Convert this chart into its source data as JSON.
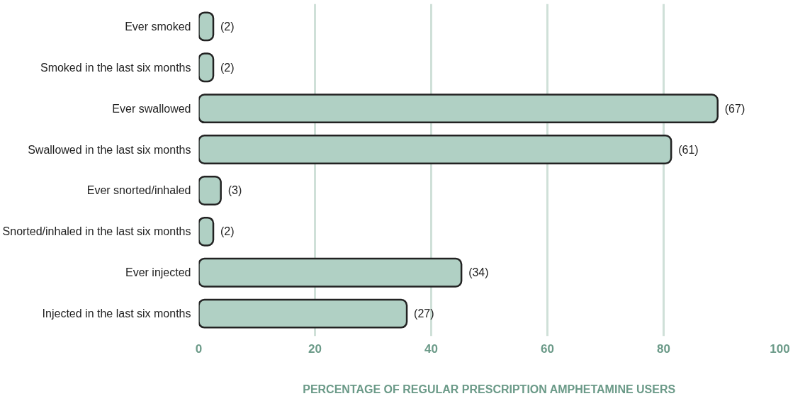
{
  "chart_data": {
    "type": "bar",
    "orientation": "horizontal",
    "xlabel": "PERCENTAGE OF REGULAR PRESCRIPTION AMPHETAMINE USERS",
    "categories": [
      "Ever smoked",
      "Smoked in the last six months",
      "Ever swallowed",
      "Swallowed in the last six months",
      "Ever snorted/inhaled",
      "Snorted/inhaled in the last six months",
      "Ever injected",
      "Injected in the last six months"
    ],
    "values": [
      2.5,
      2.5,
      89.3,
      81.3,
      3.8,
      2.5,
      45.2,
      35.8
    ],
    "annotations": [
      {
        "text": "(2)",
        "x": 2.5,
        "y": "Ever smoked"
      },
      {
        "text": "(2)",
        "x": 2.5,
        "y": "Smoked in the last six months"
      },
      {
        "text": "(67)",
        "x": 89.3,
        "y": "Ever swallowed"
      },
      {
        "text": "(61)",
        "x": 81.3,
        "y": "Swallowed in the last six months"
      },
      {
        "text": "(3)",
        "x": 3.8,
        "y": "Ever snorted/inhaled"
      },
      {
        "text": "(2)",
        "x": 2.5,
        "y": "Snorted/inhaled in the last six months"
      },
      {
        "text": "(34)",
        "x": 45.2,
        "y": "Ever injected"
      },
      {
        "text": "(27)",
        "x": 35.8,
        "y": "Injected in the last six months"
      }
    ],
    "color": "#b0d0c4",
    "xlim": [
      0,
      100
    ],
    "xticks": [
      0,
      20,
      40,
      60,
      80,
      100
    ],
    "grid": "x"
  }
}
